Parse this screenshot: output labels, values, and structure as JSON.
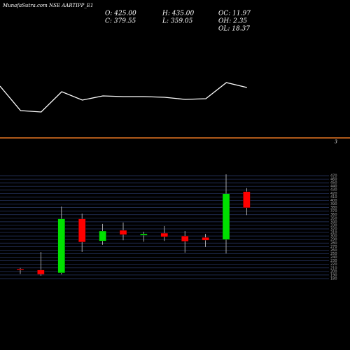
{
  "header": {
    "title": "MunafaSutra.com NSE AARTIPP_E1",
    "stats": [
      [
        "O: 425.00",
        "H: 435.00",
        "OC: 11.97"
      ],
      [
        "C: 379.55",
        "L: 359.05",
        "OH: 2.35"
      ],
      [
        "",
        "",
        "OL: 18.37"
      ]
    ]
  },
  "chart_data": [
    {
      "type": "line",
      "color": "#ffffff",
      "values": [
        47,
        12,
        10,
        39,
        27,
        33,
        32,
        32,
        31,
        28,
        29,
        52,
        45
      ],
      "ylim": [
        0,
        70
      ]
    },
    {
      "type": "hline",
      "color": "#e87722",
      "label": "3"
    },
    {
      "type": "candlestick",
      "up_color": "#00e000",
      "down_color": "#ff0000",
      "grid": true,
      "grid_color": "#2a3a6a",
      "ylim": [
        175,
        480
      ],
      "yticks": [
        180,
        190,
        200,
        210,
        220,
        230,
        240,
        250,
        260,
        270,
        280,
        290,
        300,
        310,
        320,
        330,
        340,
        350,
        360,
        370,
        380,
        390,
        400,
        410,
        420,
        430,
        440,
        450,
        460,
        470
      ],
      "open": [
        207,
        204,
        196,
        348,
        286,
        316,
        302,
        308,
        300,
        296,
        290,
        425
      ],
      "high": [
        210,
        255,
        383,
        363,
        334,
        338,
        312,
        328,
        314,
        306,
        474,
        435
      ],
      "low": [
        193,
        188,
        192,
        255,
        275,
        288,
        284,
        286,
        253,
        269,
        251,
        359.05
      ],
      "close": [
        205,
        192,
        348,
        283,
        314,
        304,
        306,
        298,
        285,
        288,
        419,
        379.55
      ]
    }
  ]
}
